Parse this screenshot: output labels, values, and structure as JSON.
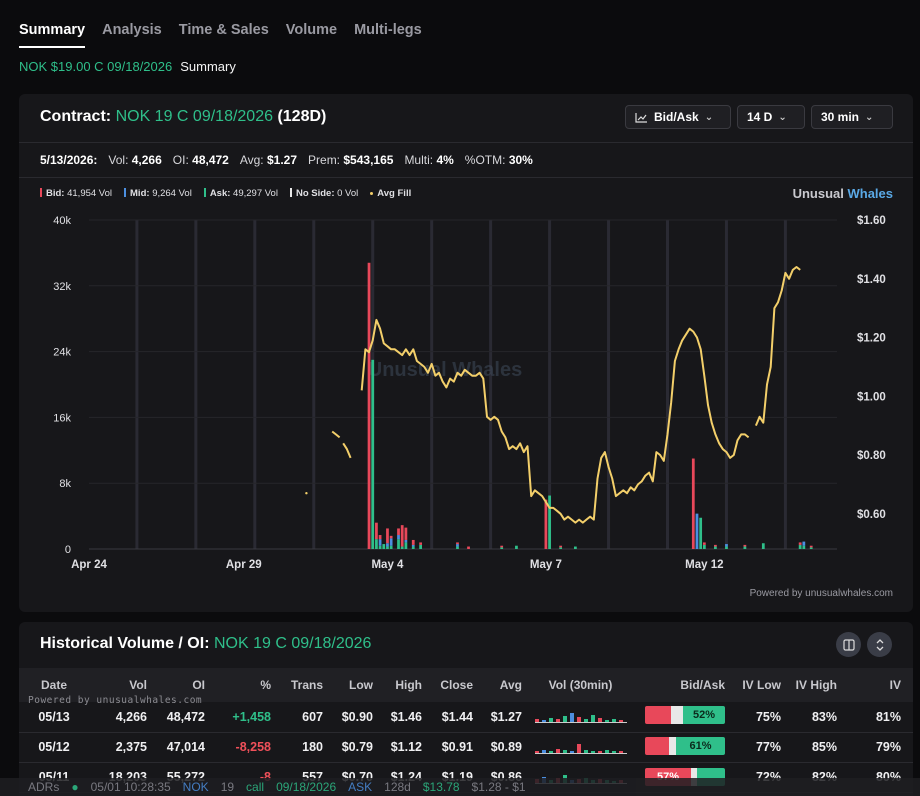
{
  "tabs": [
    "Summary",
    "Analysis",
    "Time & Sales",
    "Volume",
    "Multi-legs"
  ],
  "crumb": {
    "contract": "NOK $19.00 C 09/18/2026",
    "section": "Summary"
  },
  "contract": {
    "label": "Contract:",
    "name": "NOK 19 C 09/18/2026",
    "days": "(128D)"
  },
  "controls": {
    "mode": "Bid/Ask",
    "range": "14 D",
    "interval": "30 min"
  },
  "stats": {
    "date": "5/13/2026:",
    "vol_label": "Vol:",
    "vol": "4,266",
    "oi_label": "OI:",
    "oi": "48,472",
    "avg_label": "Avg:",
    "avg": "$1.27",
    "prem_label": "Prem:",
    "prem": "$543,165",
    "multi_label": "Multi:",
    "multi": "4%",
    "otm_label": "%OTM:",
    "otm": "30%"
  },
  "legend": [
    {
      "name": "Bid:",
      "value": "41,954 Vol",
      "color": "#e8485a"
    },
    {
      "name": "Mid:",
      "value": "9,264 Vol",
      "color": "#4c8fe0"
    },
    {
      "name": "Ask:",
      "value": "49,297 Vol",
      "color": "#2fbf8a"
    },
    {
      "name": "No Side:",
      "value": "0 Vol",
      "color": "#e8e8e8"
    },
    {
      "name": "Avg Fill",
      "value": "",
      "color": "#f3cf6a"
    }
  ],
  "brand": {
    "a": "Unusual",
    "b": "Whales"
  },
  "watermark": "Unusual Whales",
  "powered": "Powered by unusualwhales.com",
  "chart_data": {
    "type": "bar",
    "y_left_ticks": [
      "40k",
      "32k",
      "24k",
      "16k",
      "8k",
      "0"
    ],
    "y_left_range": [
      0,
      40000
    ],
    "y_right_ticks": [
      "$1.60",
      "$1.40",
      "$1.20",
      "$1.00",
      "$0.80",
      "$0.60"
    ],
    "y_right_range": [
      0.48,
      1.6
    ],
    "x_ticks": [
      {
        "label": "Apr 24",
        "i": 0
      },
      {
        "label": "Apr 29",
        "i": 42
      },
      {
        "label": "May 4",
        "i": 81
      },
      {
        "label": "May 7",
        "i": 124
      },
      {
        "label": "May 12",
        "i": 167
      }
    ],
    "n_slots": 203,
    "session_dividers": [
      13,
      29,
      45,
      61,
      77,
      93,
      109,
      125,
      141,
      157,
      173,
      189
    ],
    "bars": [
      {
        "i": 76,
        "bid": 34800,
        "mid": 0,
        "ask": 0
      },
      {
        "i": 77,
        "bid": 0,
        "mid": 0,
        "ask": 23000
      },
      {
        "i": 78,
        "bid": 2000,
        "mid": 0,
        "ask": 1200
      },
      {
        "i": 79,
        "bid": 500,
        "mid": 800,
        "ask": 400
      },
      {
        "i": 80,
        "bid": 0,
        "mid": 0,
        "ask": 600
      },
      {
        "i": 81,
        "bid": 1800,
        "mid": 400,
        "ask": 300
      },
      {
        "i": 82,
        "bid": 300,
        "mid": 900,
        "ask": 400
      },
      {
        "i": 84,
        "bid": 800,
        "mid": 500,
        "ask": 1200
      },
      {
        "i": 85,
        "bid": 2600,
        "mid": 0,
        "ask": 300
      },
      {
        "i": 86,
        "bid": 1500,
        "mid": 300,
        "ask": 800
      },
      {
        "i": 88,
        "bid": 600,
        "mid": 200,
        "ask": 300
      },
      {
        "i": 90,
        "bid": 300,
        "mid": 0,
        "ask": 500
      },
      {
        "i": 100,
        "bid": 200,
        "mid": 300,
        "ask": 300
      },
      {
        "i": 103,
        "bid": 300,
        "mid": 0,
        "ask": 0
      },
      {
        "i": 112,
        "bid": 200,
        "mid": 0,
        "ask": 200
      },
      {
        "i": 116,
        "bid": 0,
        "mid": 0,
        "ask": 400
      },
      {
        "i": 124,
        "bid": 6000,
        "mid": 0,
        "ask": 0
      },
      {
        "i": 125,
        "bid": 0,
        "mid": 0,
        "ask": 6500
      },
      {
        "i": 128,
        "bid": 200,
        "mid": 0,
        "ask": 200
      },
      {
        "i": 132,
        "bid": 0,
        "mid": 0,
        "ask": 300
      },
      {
        "i": 164,
        "bid": 11000,
        "mid": 0,
        "ask": 0
      },
      {
        "i": 165,
        "bid": 0,
        "mid": 4300,
        "ask": 0
      },
      {
        "i": 166,
        "bid": 0,
        "mid": 0,
        "ask": 3800
      },
      {
        "i": 167,
        "bid": 300,
        "mid": 0,
        "ask": 500
      },
      {
        "i": 170,
        "bid": 200,
        "mid": 0,
        "ask": 300
      },
      {
        "i": 173,
        "bid": 0,
        "mid": 300,
        "ask": 300
      },
      {
        "i": 178,
        "bid": 200,
        "mid": 0,
        "ask": 300
      },
      {
        "i": 183,
        "bid": 0,
        "mid": 0,
        "ask": 700
      },
      {
        "i": 193,
        "bid": 300,
        "mid": 0,
        "ask": 500
      },
      {
        "i": 194,
        "bid": 0,
        "mid": 500,
        "ask": 400
      },
      {
        "i": 196,
        "bid": 200,
        "mid": 0,
        "ask": 200
      }
    ],
    "avg_fill": [
      [
        [
          59,
          0.67
        ]
      ],
      [
        [
          66,
          0.88
        ],
        [
          67,
          0.87
        ],
        [
          68,
          0.86
        ]
      ],
      [
        [
          69,
          0.84
        ],
        [
          70,
          0.82
        ],
        [
          71,
          0.79
        ]
      ],
      [
        [
          74,
          1.02
        ],
        [
          75,
          1.16
        ],
        [
          76,
          1.15
        ],
        [
          77,
          1.19
        ],
        [
          78,
          1.26
        ],
        [
          79,
          1.23
        ],
        [
          80,
          1.18
        ],
        [
          81,
          1.17
        ],
        [
          82,
          1.16
        ],
        [
          83,
          1.16
        ],
        [
          84,
          1.15
        ],
        [
          85,
          1.14
        ],
        [
          86,
          1.16
        ],
        [
          87,
          1.14
        ],
        [
          88,
          1.16
        ],
        [
          89,
          1.12
        ],
        [
          90,
          1.11
        ],
        [
          91,
          1.1
        ],
        [
          92,
          1.08
        ],
        [
          93,
          1.11
        ],
        [
          94,
          1.07
        ],
        [
          95,
          1.08
        ],
        [
          96,
          1.05
        ],
        [
          97,
          1.03
        ],
        [
          98,
          1.06
        ],
        [
          99,
          1.05
        ],
        [
          100,
          1.08
        ],
        [
          101,
          1.07
        ],
        [
          102,
          1.09
        ],
        [
          103,
          1.08
        ],
        [
          104,
          1.07
        ],
        [
          105,
          1.07
        ],
        [
          106,
          1.08
        ],
        [
          107,
          1.06
        ],
        [
          108,
          0.93
        ],
        [
          109,
          0.92
        ],
        [
          110,
          0.93
        ],
        [
          111,
          0.92
        ],
        [
          112,
          0.88
        ],
        [
          113,
          0.86
        ],
        [
          114,
          0.82
        ],
        [
          115,
          0.83
        ],
        [
          116,
          0.82
        ],
        [
          117,
          0.84
        ],
        [
          118,
          0.81
        ],
        [
          119,
          0.83
        ],
        [
          120,
          0.66
        ],
        [
          121,
          0.68
        ],
        [
          122,
          0.67
        ],
        [
          123,
          0.66
        ],
        [
          124,
          0.64
        ],
        [
          125,
          0.62
        ],
        [
          126,
          0.62
        ],
        [
          127,
          0.61
        ],
        [
          128,
          0.6
        ],
        [
          129,
          0.58
        ],
        [
          130,
          0.59
        ],
        [
          131,
          0.58
        ],
        [
          132,
          0.57
        ],
        [
          133,
          0.58
        ],
        [
          134,
          0.57
        ],
        [
          135,
          0.58
        ],
        [
          136,
          0.59
        ],
        [
          137,
          0.58
        ],
        [
          138,
          0.72
        ],
        [
          139,
          0.79
        ],
        [
          140,
          0.81
        ],
        [
          141,
          0.76
        ],
        [
          142,
          0.72
        ],
        [
          143,
          0.66
        ],
        [
          144,
          0.67
        ],
        [
          145,
          0.68
        ],
        [
          146,
          0.67
        ],
        [
          147,
          0.69
        ],
        [
          148,
          0.68
        ],
        [
          149,
          0.7
        ],
        [
          150,
          0.71
        ],
        [
          151,
          0.73
        ],
        [
          152,
          0.74
        ],
        [
          153,
          0.71
        ],
        [
          154,
          0.81
        ],
        [
          155,
          0.8
        ],
        [
          156,
          0.78
        ],
        [
          157,
          0.87
        ],
        [
          158,
          0.98
        ],
        [
          159,
          1.12
        ],
        [
          160,
          1.16
        ],
        [
          161,
          1.19
        ],
        [
          162,
          1.21
        ],
        [
          163,
          1.23
        ],
        [
          164,
          1.22
        ],
        [
          165,
          1.2
        ],
        [
          166,
          1.16
        ],
        [
          167,
          1.07
        ],
        [
          168,
          0.97
        ],
        [
          169,
          0.91
        ],
        [
          170,
          0.87
        ],
        [
          171,
          0.84
        ],
        [
          172,
          0.82
        ],
        [
          173,
          0.81
        ],
        [
          174,
          0.79
        ],
        [
          175,
          0.8
        ],
        [
          176,
          0.85
        ],
        [
          177,
          0.87
        ],
        [
          178,
          0.87
        ],
        [
          179,
          0.86
        ]
      ],
      [
        [
          181,
          0.9
        ],
        [
          182,
          0.93
        ],
        [
          183,
          0.91
        ],
        [
          184,
          1.04
        ],
        [
          185,
          1.1
        ],
        [
          186,
          1.3
        ],
        [
          187,
          1.32
        ],
        [
          188,
          1.36
        ],
        [
          189,
          1.42
        ],
        [
          190,
          1.4
        ],
        [
          191,
          1.43
        ],
        [
          192,
          1.44
        ],
        [
          193,
          1.43
        ]
      ]
    ]
  },
  "hist": {
    "title": "Historical Volume / OI:",
    "contract": "NOK 19 C 09/18/2026",
    "watermark": "Powered by unusualwhales.com",
    "columns": [
      "Date",
      "Vol",
      "OI",
      "%",
      "Trans",
      "Low",
      "High",
      "Close",
      "Avg",
      "Vol (30min)",
      "Bid/Ask",
      "IV Low",
      "IV High",
      "IV"
    ],
    "rows": [
      {
        "date": "05/13",
        "vol": "4,266",
        "oi": "48,472",
        "chg": "+1,458",
        "sign": "pos",
        "trans": "607",
        "low": "$0.90",
        "high": "$1.46",
        "close": "$1.44",
        "avg": "$1.27",
        "bid_pct": 0.33,
        "ask_pct": 0.52,
        "ba_label": "52%",
        "iv_low": "75%",
        "iv_high": "83%",
        "iv": "81%"
      },
      {
        "date": "05/12",
        "vol": "2,375",
        "oi": "47,014",
        "chg": "-8,258",
        "sign": "neg",
        "trans": "180",
        "low": "$0.79",
        "high": "$1.12",
        "close": "$0.91",
        "avg": "$0.89",
        "bid_pct": 0.3,
        "ask_pct": 0.61,
        "ba_label": "61%",
        "iv_low": "77%",
        "iv_high": "85%",
        "iv": "79%"
      },
      {
        "date": "05/11",
        "vol": "18,203",
        "oi": "55,272",
        "chg": "-8",
        "sign": "neg",
        "trans": "557",
        "low": "$0.70",
        "high": "$1.24",
        "close": "$1.19",
        "avg": "$0.86",
        "bid_pct": 0.57,
        "ask_pct": 0.35,
        "ba_label": "57%",
        "iv_low": "72%",
        "iv_high": "82%",
        "iv": "80%"
      }
    ]
  },
  "ticker": [
    "ADRs",
    "05/01 10:28:35",
    "NOK",
    "19",
    "call",
    "09/18/2026",
    "ASK",
    "128d",
    "$13.78",
    "$1.28 - $1"
  ]
}
